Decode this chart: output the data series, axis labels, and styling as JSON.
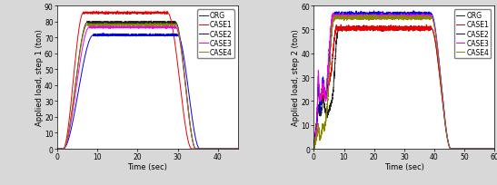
{
  "left": {
    "ylabel": "Applied load, step 1 (ton)",
    "xlabel": "Time (sec)",
    "xlim": [
      0,
      45
    ],
    "ylim": [
      0,
      90
    ],
    "xticks": [
      0,
      10,
      20,
      30,
      40
    ],
    "yticks": [
      0,
      10,
      20,
      30,
      40,
      50,
      60,
      70,
      80,
      90
    ],
    "curves": {
      "ORG": {
        "color": "#222222",
        "lw": 0.7,
        "peak": 79.5,
        "rise_end": 7.5,
        "flat_end": 29.5,
        "drop_end": 34.5,
        "rise_start": 1.5
      },
      "CASE1": {
        "color": "#ee0000",
        "lw": 0.7,
        "peak": 85.5,
        "rise_end": 6.5,
        "flat_end": 27.5,
        "drop_end": 33.5,
        "rise_start": 1.5
      },
      "CASE2": {
        "color": "#0000ee",
        "lw": 0.7,
        "peak": 71.5,
        "rise_end": 9.0,
        "flat_end": 30.0,
        "drop_end": 35.5,
        "rise_start": 1.5
      },
      "CASE3": {
        "color": "#ee00ee",
        "lw": 0.7,
        "peak": 76.5,
        "rise_end": 8.0,
        "flat_end": 29.5,
        "drop_end": 34.5,
        "rise_start": 1.5
      },
      "CASE4": {
        "color": "#888800",
        "lw": 0.7,
        "peak": 78.0,
        "rise_end": 7.5,
        "flat_end": 29.5,
        "drop_end": 34.5,
        "rise_start": 1.5
      }
    },
    "legend_order": [
      "ORG",
      "CASE1",
      "CASE2",
      "CASE3",
      "CASE4"
    ]
  },
  "right": {
    "ylabel": "Applied load, step 2 (ton)",
    "xlabel": "Time (sec)",
    "xlim": [
      0,
      60
    ],
    "ylim": [
      0,
      60
    ],
    "xticks": [
      0,
      10,
      20,
      30,
      40,
      50,
      60
    ],
    "yticks": [
      0,
      10,
      20,
      30,
      40,
      50,
      60
    ],
    "curves": {
      "ORG": {
        "color": "#222222",
        "lw": 0.7,
        "peak": 50.5,
        "flat_end": 39.0,
        "drop_end": 45.5,
        "rise_t": [
          0,
          0.5,
          1.0,
          1.5,
          2.0,
          2.5,
          3.0,
          3.5,
          4.0,
          4.5,
          5.0,
          5.5,
          6.0,
          6.5,
          7.0,
          7.5,
          8.0
        ],
        "rise_y": [
          0,
          6,
          10,
          18,
          14,
          15,
          22,
          18,
          15,
          14,
          16,
          18,
          20,
          25,
          35,
          45,
          50
        ]
      },
      "CASE1": {
        "color": "#ee0000",
        "lw": 0.7,
        "peak": 50.5,
        "flat_end": 39.0,
        "drop_end": 45.5,
        "rise_t": [
          0,
          0.5,
          1.0,
          1.5,
          2.0,
          2.5,
          3.0,
          3.5,
          4.0,
          4.5,
          5.0,
          5.5,
          6.0,
          6.5,
          7.0,
          7.5,
          8.0
        ],
        "rise_y": [
          0,
          7,
          12,
          25,
          22,
          20,
          25,
          22,
          22,
          24,
          27,
          30,
          35,
          42,
          48,
          51,
          50
        ]
      },
      "CASE2": {
        "color": "#0000ee",
        "lw": 0.7,
        "peak": 56.5,
        "flat_end": 39.0,
        "drop_end": 45.5,
        "rise_t": [
          0,
          0.5,
          1.0,
          1.5,
          2.0,
          2.5,
          3.0,
          3.5,
          4.0,
          4.5,
          5.0,
          5.5,
          6.0,
          6.5,
          7.0
        ],
        "rise_y": [
          0,
          5,
          10,
          30,
          16,
          22,
          30,
          25,
          22,
          28,
          35,
          42,
          50,
          56,
          56
        ]
      },
      "CASE3": {
        "color": "#ee00ee",
        "lw": 0.7,
        "peak": 55.5,
        "flat_end": 39.0,
        "drop_end": 45.5,
        "rise_t": [
          0,
          0.5,
          1.0,
          1.5,
          2.0,
          2.5,
          3.0,
          3.5,
          4.0,
          4.5,
          5.0,
          5.5,
          6.0,
          6.5,
          7.0
        ],
        "rise_y": [
          0,
          4,
          8,
          33,
          20,
          22,
          28,
          24,
          20,
          30,
          40,
          48,
          55,
          56,
          55
        ]
      },
      "CASE4": {
        "color": "#888800",
        "lw": 0.7,
        "peak": 55.0,
        "flat_end": 39.0,
        "drop_end": 45.5,
        "rise_t": [
          0,
          0.5,
          1.0,
          1.5,
          2.0,
          2.5,
          3.0,
          3.5,
          4.0,
          4.5,
          5.0,
          5.5,
          6.0,
          6.5,
          7.0
        ],
        "rise_y": [
          0,
          3,
          5,
          10,
          4,
          6,
          10,
          8,
          12,
          18,
          28,
          40,
          50,
          54,
          55
        ]
      }
    },
    "legend_order": [
      "ORG",
      "CASE1",
      "CASE2",
      "CASE3",
      "CASE4"
    ]
  },
  "figure": {
    "bg_color": "#d8d8d8",
    "plot_bg": "#ffffff",
    "fontsize_label": 6.0,
    "fontsize_tick": 5.5,
    "fontsize_legend": 5.5
  }
}
